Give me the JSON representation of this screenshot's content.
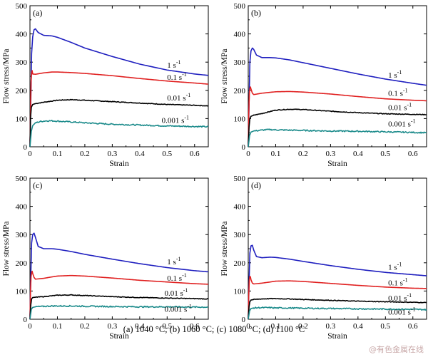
{
  "caption": "(a) 1040 °C; (b) 1060 °C; (c) 1080 °C; (d) 1100 °C",
  "watermark": "@有色金属在线",
  "chart_data": [
    {
      "type": "line",
      "panel": "(a)",
      "xlabel": "Strain",
      "ylabel": "Flow stress/MPa",
      "xlim": [
        0,
        0.65
      ],
      "ylim": [
        0,
        500
      ],
      "xticks": [
        0,
        0.1,
        0.2,
        0.3,
        0.4,
        0.5,
        0.6
      ],
      "xtick_labels": [
        "0",
        "0.1",
        "0.2",
        "0.3",
        "0.4",
        "0.5",
        "0.6"
      ],
      "yticks": [
        0,
        100,
        200,
        300,
        400,
        500
      ],
      "ytick_labels": [
        "0",
        "100",
        "200",
        "300",
        "400",
        "500"
      ],
      "series": [
        {
          "name": "1 s-1",
          "label_base": "1 s",
          "label_exp": "-1",
          "color": "#1f1fbf",
          "label_pos": [
            0.5,
            280
          ],
          "x": [
            0,
            0.003,
            0.006,
            0.01,
            0.015,
            0.02,
            0.03,
            0.05,
            0.08,
            0.1,
            0.15,
            0.2,
            0.3,
            0.4,
            0.5,
            0.6,
            0.65
          ],
          "y": [
            0,
            150,
            330,
            390,
            415,
            418,
            405,
            395,
            393,
            388,
            370,
            350,
            320,
            293,
            272,
            258,
            253
          ]
        },
        {
          "name": "0.1 s-1",
          "label_base": "0.1 s",
          "label_exp": "-1",
          "color": "#e02020",
          "label_pos": [
            0.5,
            238
          ],
          "x": [
            0,
            0.002,
            0.004,
            0.006,
            0.008,
            0.01,
            0.02,
            0.05,
            0.08,
            0.1,
            0.15,
            0.2,
            0.3,
            0.4,
            0.5,
            0.6,
            0.65
          ],
          "y": [
            0,
            120,
            230,
            262,
            270,
            258,
            257,
            262,
            265,
            265,
            263,
            260,
            252,
            242,
            233,
            226,
            222
          ]
        },
        {
          "name": "0.01 s-1",
          "label_base": "0.01 s",
          "label_exp": "-1",
          "color": "#000000",
          "label_pos": [
            0.5,
            164
          ],
          "x": [
            0,
            0.002,
            0.005,
            0.01,
            0.02,
            0.05,
            0.08,
            0.1,
            0.15,
            0.2,
            0.3,
            0.4,
            0.5,
            0.6,
            0.65
          ],
          "y": [
            0,
            100,
            140,
            150,
            153,
            158,
            162,
            165,
            167,
            165,
            160,
            155,
            150,
            147,
            145
          ]
        },
        {
          "name": "0.001 s-1",
          "label_base": "0.001 s",
          "label_exp": "-1",
          "color": "#1a8a8a",
          "label_pos": [
            0.48,
            85
          ],
          "x": [
            0,
            0.005,
            0.01,
            0.02,
            0.04,
            0.06,
            0.08,
            0.1,
            0.15,
            0.2,
            0.3,
            0.4,
            0.5,
            0.6,
            0.65
          ],
          "y": [
            0,
            55,
            75,
            85,
            90,
            92,
            92,
            91,
            88,
            85,
            80,
            77,
            74,
            72,
            71
          ]
        }
      ]
    },
    {
      "type": "line",
      "panel": "(b)",
      "xlabel": "Strain",
      "ylabel": "Flow stress/MPa",
      "xlim": [
        0,
        0.65
      ],
      "ylim": [
        0,
        500
      ],
      "xticks": [
        0,
        0.1,
        0.2,
        0.3,
        0.4,
        0.5,
        0.6
      ],
      "xtick_labels": [
        "0",
        "0.1",
        "0.2",
        "0.3",
        "0.4",
        "0.5",
        "0.6"
      ],
      "yticks": [
        0,
        100,
        200,
        300,
        400,
        500
      ],
      "ytick_labels": [
        "0",
        "100",
        "200",
        "300",
        "400",
        "500"
      ],
      "series": [
        {
          "name": "1 s-1",
          "label_base": "1 s",
          "label_exp": "-1",
          "color": "#1f1fbf",
          "label_pos": [
            0.51,
            245
          ],
          "x": [
            0,
            0.003,
            0.006,
            0.01,
            0.015,
            0.02,
            0.03,
            0.05,
            0.08,
            0.1,
            0.15,
            0.2,
            0.3,
            0.4,
            0.5,
            0.6,
            0.65
          ],
          "y": [
            0,
            150,
            300,
            340,
            350,
            345,
            325,
            316,
            316,
            315,
            308,
            298,
            278,
            258,
            240,
            225,
            218
          ]
        },
        {
          "name": "0.1 s-1",
          "label_base": "0.1 s",
          "label_exp": "-1",
          "color": "#e02020",
          "label_pos": [
            0.51,
            180
          ],
          "x": [
            0,
            0.002,
            0.004,
            0.006,
            0.008,
            0.01,
            0.015,
            0.02,
            0.05,
            0.08,
            0.1,
            0.15,
            0.2,
            0.3,
            0.4,
            0.5,
            0.6,
            0.65
          ],
          "y": [
            0,
            120,
            190,
            207,
            212,
            205,
            190,
            185,
            190,
            193,
            195,
            196,
            194,
            187,
            178,
            170,
            165,
            163
          ]
        },
        {
          "name": "0.01 s-1",
          "label_base": "0.01 s",
          "label_exp": "-1",
          "color": "#000000",
          "label_pos": [
            0.51,
            130
          ],
          "x": [
            0,
            0.003,
            0.006,
            0.01,
            0.02,
            0.05,
            0.08,
            0.1,
            0.15,
            0.2,
            0.3,
            0.4,
            0.5,
            0.6,
            0.65
          ],
          "y": [
            0,
            70,
            100,
            108,
            112,
            118,
            125,
            130,
            133,
            132,
            126,
            121,
            117,
            115,
            114
          ]
        },
        {
          "name": "0.001 s-1",
          "label_base": "0.001 s",
          "label_exp": "-1",
          "color": "#1a8a8a",
          "label_pos": [
            0.51,
            72
          ],
          "x": [
            0,
            0.005,
            0.01,
            0.02,
            0.04,
            0.06,
            0.08,
            0.1,
            0.15,
            0.2,
            0.3,
            0.4,
            0.5,
            0.6,
            0.65
          ],
          "y": [
            0,
            40,
            52,
            56,
            58,
            60,
            61,
            60,
            59,
            58,
            56,
            55,
            53,
            51,
            50
          ]
        }
      ]
    },
    {
      "type": "line",
      "panel": "(c)",
      "xlabel": "Strain",
      "ylabel": "Flow stress/MPa",
      "xlim": [
        0,
        0.65
      ],
      "ylim": [
        0,
        500
      ],
      "xticks": [
        0,
        0.1,
        0.2,
        0.3,
        0.4,
        0.5,
        0.6
      ],
      "xtick_labels": [
        "0",
        "0.1",
        "0.2",
        "0.3",
        "0.4",
        "0.5",
        "0.6"
      ],
      "yticks": [
        0,
        100,
        200,
        300,
        400,
        500
      ],
      "ytick_labels": [
        "0",
        "100",
        "200",
        "300",
        "400",
        "500"
      ],
      "series": [
        {
          "name": "1 s-1",
          "label_base": "1 s",
          "label_exp": "-1",
          "color": "#1f1fbf",
          "label_pos": [
            0.5,
            195
          ],
          "x": [
            0,
            0.003,
            0.006,
            0.01,
            0.015,
            0.02,
            0.03,
            0.05,
            0.08,
            0.1,
            0.15,
            0.2,
            0.3,
            0.4,
            0.5,
            0.6,
            0.65
          ],
          "y": [
            0,
            150,
            270,
            300,
            305,
            290,
            258,
            250,
            250,
            248,
            240,
            230,
            213,
            197,
            183,
            172,
            168
          ]
        },
        {
          "name": "0.1 s-1",
          "label_base": "0.1 s",
          "label_exp": "-1",
          "color": "#e02020",
          "label_pos": [
            0.5,
            136
          ],
          "x": [
            0,
            0.002,
            0.004,
            0.006,
            0.008,
            0.01,
            0.015,
            0.02,
            0.05,
            0.08,
            0.1,
            0.15,
            0.2,
            0.3,
            0.4,
            0.5,
            0.6,
            0.65
          ],
          "y": [
            0,
            100,
            150,
            165,
            170,
            162,
            148,
            142,
            145,
            150,
            153,
            155,
            153,
            146,
            138,
            132,
            126,
            124
          ]
        },
        {
          "name": "0.01 s-1",
          "label_base": "0.01 s",
          "label_exp": "-1",
          "color": "#000000",
          "label_pos": [
            0.49,
            83
          ],
          "x": [
            0,
            0.003,
            0.006,
            0.01,
            0.02,
            0.05,
            0.08,
            0.1,
            0.15,
            0.2,
            0.3,
            0.4,
            0.5,
            0.6,
            0.65
          ],
          "y": [
            0,
            50,
            72,
            77,
            78,
            80,
            83,
            85,
            86,
            84,
            80,
            77,
            75,
            73,
            72
          ]
        },
        {
          "name": "0.001 s-1",
          "label_base": "0.001 s",
          "label_exp": "-1",
          "color": "#1a8a8a",
          "label_pos": [
            0.49,
            27
          ],
          "x": [
            0,
            0.005,
            0.01,
            0.02,
            0.04,
            0.06,
            0.08,
            0.1,
            0.15,
            0.2,
            0.3,
            0.4,
            0.5,
            0.6,
            0.65
          ],
          "y": [
            0,
            35,
            42,
            44,
            45,
            46,
            47,
            47,
            47,
            46,
            45,
            44,
            44,
            43,
            43
          ]
        }
      ]
    },
    {
      "type": "line",
      "panel": "(d)",
      "xlabel": "Strain",
      "ylabel": "Flow stress/MPa",
      "xlim": [
        0,
        0.65
      ],
      "ylim": [
        0,
        500
      ],
      "xticks": [
        0,
        0.1,
        0.2,
        0.3,
        0.4,
        0.5,
        0.6
      ],
      "xtick_labels": [
        "0",
        "0.1",
        "0.2",
        "0.3",
        "0.4",
        "0.5",
        "0.6"
      ],
      "yticks": [
        0,
        100,
        200,
        300,
        400,
        500
      ],
      "ytick_labels": [
        "0",
        "100",
        "200",
        "300",
        "400",
        "500"
      ],
      "series": [
        {
          "name": "1 s-1",
          "label_base": "1 s",
          "label_exp": "-1",
          "color": "#1f1fbf",
          "label_pos": [
            0.51,
            175
          ],
          "x": [
            0,
            0.003,
            0.006,
            0.01,
            0.015,
            0.02,
            0.03,
            0.05,
            0.08,
            0.1,
            0.15,
            0.2,
            0.3,
            0.4,
            0.5,
            0.6,
            0.65
          ],
          "y": [
            0,
            130,
            235,
            260,
            262,
            245,
            222,
            218,
            220,
            219,
            213,
            205,
            190,
            177,
            166,
            158,
            154
          ]
        },
        {
          "name": "0.1 s-1",
          "label_base": "0.1 s",
          "label_exp": "-1",
          "color": "#e02020",
          "label_pos": [
            0.51,
            120
          ],
          "x": [
            0,
            0.002,
            0.004,
            0.006,
            0.008,
            0.01,
            0.015,
            0.02,
            0.05,
            0.08,
            0.1,
            0.15,
            0.2,
            0.3,
            0.4,
            0.5,
            0.6,
            0.65
          ],
          "y": [
            0,
            90,
            140,
            152,
            150,
            140,
            128,
            125,
            128,
            132,
            135,
            136,
            134,
            127,
            120,
            114,
            110,
            109
          ]
        },
        {
          "name": "0.01 s-1",
          "label_base": "0.01 s",
          "label_exp": "-1",
          "color": "#000000",
          "label_pos": [
            0.51,
            66
          ],
          "x": [
            0,
            0.003,
            0.006,
            0.01,
            0.02,
            0.05,
            0.08,
            0.1,
            0.15,
            0.2,
            0.3,
            0.4,
            0.5,
            0.6,
            0.65
          ],
          "y": [
            0,
            45,
            62,
            68,
            70,
            72,
            73,
            73,
            72,
            70,
            67,
            64,
            62,
            60,
            59
          ]
        },
        {
          "name": "0.001 s-1",
          "label_base": "0.001 s",
          "label_exp": "-1",
          "color": "#1a8a8a",
          "label_pos": [
            0.51,
            17
          ],
          "x": [
            0,
            0.005,
            0.01,
            0.02,
            0.04,
            0.06,
            0.08,
            0.1,
            0.15,
            0.2,
            0.3,
            0.4,
            0.5,
            0.6,
            0.65
          ],
          "y": [
            0,
            30,
            38,
            40,
            41,
            41,
            41,
            40,
            40,
            39,
            38,
            37,
            36,
            35,
            34
          ]
        }
      ]
    }
  ]
}
